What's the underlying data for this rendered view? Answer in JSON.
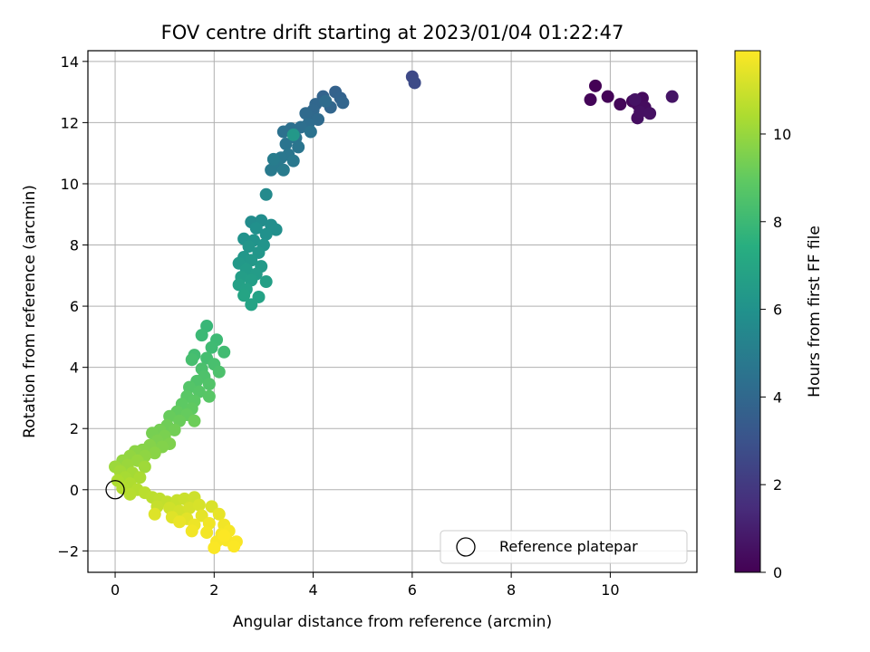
{
  "chart_data": {
    "type": "scatter",
    "title": "FOV centre drift starting at 2023/01/04 01:22:47",
    "xlabel": "Angular distance from reference (arcmin)",
    "ylabel": "Rotation from reference (arcmin)",
    "xlim": [
      -0.55,
      11.75
    ],
    "ylim": [
      -2.7,
      14.35
    ],
    "x_ticks": [
      0,
      2,
      4,
      6,
      8,
      10
    ],
    "y_ticks": [
      -2,
      0,
      2,
      4,
      6,
      8,
      10,
      12,
      14
    ],
    "grid": true,
    "colormap": "viridis",
    "colorbar": {
      "label": "Hours from first FF file",
      "range": [
        0,
        11.9
      ],
      "ticks": [
        0,
        2,
        4,
        6,
        8,
        10
      ]
    },
    "legend": {
      "position": "lower right",
      "entries": [
        "Reference platepar"
      ]
    },
    "reference_point": {
      "x": 0,
      "y": 0,
      "label": "Reference platepar"
    },
    "series": [
      {
        "values": [
          {
            "x": 9.7,
            "y": 13.2,
            "h": 0.05
          },
          {
            "x": 9.95,
            "y": 12.85,
            "h": 0.1
          },
          {
            "x": 9.6,
            "y": 12.75,
            "h": 0.15
          },
          {
            "x": 10.2,
            "y": 12.6,
            "h": 0.2
          },
          {
            "x": 10.45,
            "y": 12.7,
            "h": 0.25
          },
          {
            "x": 10.55,
            "y": 12.6,
            "h": 0.3
          },
          {
            "x": 10.65,
            "y": 12.8,
            "h": 0.35
          },
          {
            "x": 10.7,
            "y": 12.5,
            "h": 0.4
          },
          {
            "x": 10.55,
            "y": 12.15,
            "h": 0.45
          },
          {
            "x": 10.6,
            "y": 12.35,
            "h": 0.5
          },
          {
            "x": 10.8,
            "y": 12.3,
            "h": 0.55
          },
          {
            "x": 10.5,
            "y": 12.75,
            "h": 0.6
          },
          {
            "x": 11.25,
            "y": 12.85,
            "h": 0.65
          },
          {
            "x": 6.0,
            "y": 13.5,
            "h": 2.6
          },
          {
            "x": 6.05,
            "y": 13.3,
            "h": 2.7
          },
          {
            "x": 4.45,
            "y": 13.0,
            "h": 3.7
          },
          {
            "x": 4.55,
            "y": 12.8,
            "h": 3.75
          },
          {
            "x": 4.2,
            "y": 12.85,
            "h": 3.8
          },
          {
            "x": 4.6,
            "y": 12.65,
            "h": 3.85
          },
          {
            "x": 4.35,
            "y": 12.5,
            "h": 3.9
          },
          {
            "x": 4.05,
            "y": 12.6,
            "h": 3.95
          },
          {
            "x": 4.0,
            "y": 12.4,
            "h": 4.0
          },
          {
            "x": 3.95,
            "y": 12.15,
            "h": 4.05
          },
          {
            "x": 3.85,
            "y": 12.3,
            "h": 4.1
          },
          {
            "x": 4.1,
            "y": 12.1,
            "h": 4.15
          },
          {
            "x": 4.25,
            "y": 12.7,
            "h": 4.2
          },
          {
            "x": 3.9,
            "y": 11.95,
            "h": 4.25
          },
          {
            "x": 3.75,
            "y": 11.85,
            "h": 4.3
          },
          {
            "x": 3.55,
            "y": 11.8,
            "h": 4.35
          },
          {
            "x": 3.4,
            "y": 11.7,
            "h": 4.4
          },
          {
            "x": 3.95,
            "y": 11.7,
            "h": 4.45
          },
          {
            "x": 3.65,
            "y": 11.5,
            "h": 4.5
          },
          {
            "x": 3.45,
            "y": 11.3,
            "h": 4.55
          },
          {
            "x": 3.7,
            "y": 11.2,
            "h": 4.6
          },
          {
            "x": 3.5,
            "y": 10.95,
            "h": 4.65
          },
          {
            "x": 3.35,
            "y": 10.85,
            "h": 4.7
          },
          {
            "x": 3.6,
            "y": 10.75,
            "h": 4.75
          },
          {
            "x": 3.25,
            "y": 10.65,
            "h": 4.8
          },
          {
            "x": 3.15,
            "y": 10.45,
            "h": 4.85
          },
          {
            "x": 3.4,
            "y": 10.45,
            "h": 4.9
          },
          {
            "x": 3.2,
            "y": 10.8,
            "h": 4.95
          },
          {
            "x": 3.6,
            "y": 11.6,
            "h": 6.3
          },
          {
            "x": 3.05,
            "y": 9.65,
            "h": 5.6
          },
          {
            "x": 2.75,
            "y": 8.75,
            "h": 5.7
          },
          {
            "x": 2.95,
            "y": 8.8,
            "h": 5.75
          },
          {
            "x": 3.15,
            "y": 8.65,
            "h": 5.8
          },
          {
            "x": 3.25,
            "y": 8.5,
            "h": 5.85
          },
          {
            "x": 2.85,
            "y": 8.55,
            "h": 5.9
          },
          {
            "x": 3.05,
            "y": 8.35,
            "h": 5.95
          },
          {
            "x": 2.6,
            "y": 8.2,
            "h": 6.0
          },
          {
            "x": 2.8,
            "y": 8.15,
            "h": 6.05
          },
          {
            "x": 3.0,
            "y": 8.0,
            "h": 6.1
          },
          {
            "x": 2.7,
            "y": 7.95,
            "h": 6.15
          },
          {
            "x": 2.9,
            "y": 7.75,
            "h": 6.2
          },
          {
            "x": 2.6,
            "y": 7.6,
            "h": 6.25
          },
          {
            "x": 2.75,
            "y": 7.5,
            "h": 6.3
          },
          {
            "x": 2.5,
            "y": 7.4,
            "h": 6.35
          },
          {
            "x": 2.95,
            "y": 7.3,
            "h": 6.4
          },
          {
            "x": 2.65,
            "y": 7.2,
            "h": 6.45
          },
          {
            "x": 2.85,
            "y": 7.05,
            "h": 6.5
          },
          {
            "x": 2.55,
            "y": 6.95,
            "h": 6.55
          },
          {
            "x": 2.75,
            "y": 6.85,
            "h": 6.6
          },
          {
            "x": 3.05,
            "y": 6.8,
            "h": 6.65
          },
          {
            "x": 2.5,
            "y": 6.7,
            "h": 6.7
          },
          {
            "x": 2.65,
            "y": 6.55,
            "h": 6.75
          },
          {
            "x": 2.9,
            "y": 6.3,
            "h": 6.8
          },
          {
            "x": 2.75,
            "y": 6.05,
            "h": 6.85
          },
          {
            "x": 2.6,
            "y": 6.35,
            "h": 6.9
          },
          {
            "x": 1.85,
            "y": 5.35,
            "h": 7.9
          },
          {
            "x": 1.75,
            "y": 5.05,
            "h": 8.0
          },
          {
            "x": 2.05,
            "y": 4.9,
            "h": 8.05
          },
          {
            "x": 1.95,
            "y": 4.65,
            "h": 8.1
          },
          {
            "x": 2.2,
            "y": 4.5,
            "h": 8.15
          },
          {
            "x": 1.6,
            "y": 4.4,
            "h": 8.2
          },
          {
            "x": 1.85,
            "y": 4.3,
            "h": 8.25
          },
          {
            "x": 1.55,
            "y": 4.25,
            "h": 8.3
          },
          {
            "x": 2.0,
            "y": 4.1,
            "h": 8.35
          },
          {
            "x": 1.75,
            "y": 3.95,
            "h": 8.4
          },
          {
            "x": 2.1,
            "y": 3.85,
            "h": 8.45
          },
          {
            "x": 1.8,
            "y": 3.7,
            "h": 8.5
          },
          {
            "x": 1.65,
            "y": 3.55,
            "h": 8.55
          },
          {
            "x": 1.9,
            "y": 3.45,
            "h": 8.6
          },
          {
            "x": 1.5,
            "y": 3.35,
            "h": 8.65
          },
          {
            "x": 1.7,
            "y": 3.2,
            "h": 8.7
          },
          {
            "x": 1.9,
            "y": 3.05,
            "h": 8.75
          },
          {
            "x": 1.45,
            "y": 3.05,
            "h": 8.8
          },
          {
            "x": 1.6,
            "y": 2.9,
            "h": 8.85
          },
          {
            "x": 1.35,
            "y": 2.8,
            "h": 8.9
          },
          {
            "x": 1.55,
            "y": 2.65,
            "h": 8.95
          },
          {
            "x": 1.25,
            "y": 2.55,
            "h": 9.0
          },
          {
            "x": 1.45,
            "y": 2.45,
            "h": 9.05
          },
          {
            "x": 1.1,
            "y": 2.4,
            "h": 9.1
          },
          {
            "x": 1.3,
            "y": 2.25,
            "h": 9.15
          },
          {
            "x": 1.6,
            "y": 2.25,
            "h": 9.2
          },
          {
            "x": 1.05,
            "y": 2.1,
            "h": 9.25
          },
          {
            "x": 1.2,
            "y": 1.95,
            "h": 9.3
          },
          {
            "x": 0.9,
            "y": 1.95,
            "h": 9.35
          },
          {
            "x": 0.75,
            "y": 1.85,
            "h": 9.4
          },
          {
            "x": 1.0,
            "y": 1.75,
            "h": 9.45
          },
          {
            "x": 0.85,
            "y": 1.6,
            "h": 9.5
          },
          {
            "x": 1.1,
            "y": 1.5,
            "h": 9.55
          },
          {
            "x": 0.95,
            "y": 1.4,
            "h": 9.6
          },
          {
            "x": 0.7,
            "y": 1.45,
            "h": 9.65
          },
          {
            "x": 0.55,
            "y": 1.3,
            "h": 9.7
          },
          {
            "x": 0.8,
            "y": 1.2,
            "h": 9.75
          },
          {
            "x": 0.4,
            "y": 1.25,
            "h": 9.8
          },
          {
            "x": 0.6,
            "y": 1.1,
            "h": 9.85
          },
          {
            "x": 0.3,
            "y": 1.1,
            "h": 9.9
          },
          {
            "x": 0.15,
            "y": 0.95,
            "h": 9.95
          },
          {
            "x": 0.45,
            "y": 0.95,
            "h": 10.0
          },
          {
            "x": 0.25,
            "y": 0.8,
            "h": 10.05
          },
          {
            "x": 0.0,
            "y": 0.75,
            "h": 10.1
          },
          {
            "x": 0.6,
            "y": 0.75,
            "h": 10.15
          },
          {
            "x": 0.1,
            "y": 0.6,
            "h": 10.2
          },
          {
            "x": 0.35,
            "y": 0.55,
            "h": 10.25
          },
          {
            "x": 0.2,
            "y": 0.4,
            "h": 10.3
          },
          {
            "x": 0.5,
            "y": 0.4,
            "h": 10.35
          },
          {
            "x": 0.05,
            "y": 0.3,
            "h": 10.4
          },
          {
            "x": 0.3,
            "y": 0.2,
            "h": 10.45
          },
          {
            "x": 0.15,
            "y": 0.05,
            "h": 10.5
          },
          {
            "x": 0.45,
            "y": 0.0,
            "h": 10.55
          },
          {
            "x": 0.3,
            "y": -0.15,
            "h": 10.6
          },
          {
            "x": 0.6,
            "y": -0.1,
            "h": 10.65
          },
          {
            "x": 0.75,
            "y": -0.25,
            "h": 10.7
          },
          {
            "x": 0.9,
            "y": -0.3,
            "h": 10.75
          },
          {
            "x": 1.05,
            "y": -0.4,
            "h": 10.8
          },
          {
            "x": 0.85,
            "y": -0.55,
            "h": 10.85
          },
          {
            "x": 1.25,
            "y": -0.35,
            "h": 10.9
          },
          {
            "x": 1.4,
            "y": -0.3,
            "h": 10.95
          },
          {
            "x": 1.6,
            "y": -0.25,
            "h": 11.0
          },
          {
            "x": 1.1,
            "y": -0.6,
            "h": 11.05
          },
          {
            "x": 1.3,
            "y": -0.7,
            "h": 11.1
          },
          {
            "x": 1.5,
            "y": -0.6,
            "h": 11.15
          },
          {
            "x": 1.7,
            "y": -0.5,
            "h": 11.2
          },
          {
            "x": 1.95,
            "y": -0.55,
            "h": 11.25
          },
          {
            "x": 0.8,
            "y": -0.8,
            "h": 11.3
          },
          {
            "x": 1.15,
            "y": -0.9,
            "h": 11.35
          },
          {
            "x": 1.45,
            "y": -0.95,
            "h": 11.4
          },
          {
            "x": 1.75,
            "y": -0.85,
            "h": 11.45
          },
          {
            "x": 2.1,
            "y": -0.8,
            "h": 11.5
          },
          {
            "x": 1.3,
            "y": -1.05,
            "h": 11.55
          },
          {
            "x": 1.6,
            "y": -1.15,
            "h": 11.6
          },
          {
            "x": 1.9,
            "y": -1.1,
            "h": 11.65
          },
          {
            "x": 2.2,
            "y": -1.15,
            "h": 11.68
          },
          {
            "x": 1.55,
            "y": -1.35,
            "h": 11.7
          },
          {
            "x": 1.85,
            "y": -1.4,
            "h": 11.72
          },
          {
            "x": 2.15,
            "y": -1.45,
            "h": 11.74
          },
          {
            "x": 2.3,
            "y": -1.35,
            "h": 11.76
          },
          {
            "x": 2.05,
            "y": -1.7,
            "h": 11.78
          },
          {
            "x": 2.25,
            "y": -1.65,
            "h": 11.8
          },
          {
            "x": 2.45,
            "y": -1.7,
            "h": 11.82
          },
          {
            "x": 2.0,
            "y": -1.9,
            "h": 11.84
          },
          {
            "x": 2.4,
            "y": -1.85,
            "h": 11.86
          },
          {
            "x": 2.2,
            "y": -1.5,
            "h": 11.88
          }
        ]
      }
    ]
  }
}
